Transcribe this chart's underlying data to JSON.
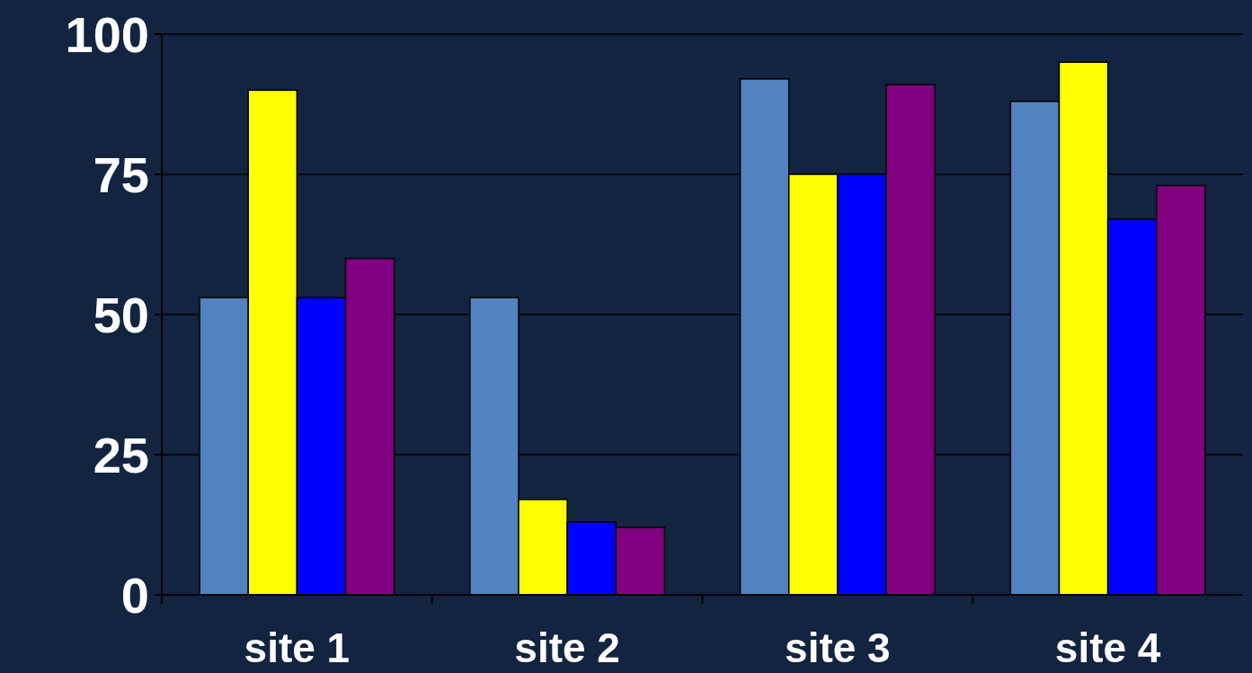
{
  "chart_data": {
    "type": "bar",
    "categories": [
      "site 1",
      "site 2",
      "site 3",
      "site 4"
    ],
    "series": [
      {
        "color": "#5282c0",
        "values": [
          53,
          53,
          92,
          88
        ]
      },
      {
        "color": "#ffff00",
        "values": [
          90,
          17,
          75,
          95
        ]
      },
      {
        "color": "#0000ff",
        "values": [
          53,
          13,
          75,
          67
        ]
      },
      {
        "color": "#800080",
        "values": [
          60,
          12,
          91,
          73
        ]
      }
    ],
    "ylim": [
      0,
      100
    ],
    "yticks": [
      0,
      25,
      50,
      75,
      100
    ],
    "grid": "y"
  }
}
